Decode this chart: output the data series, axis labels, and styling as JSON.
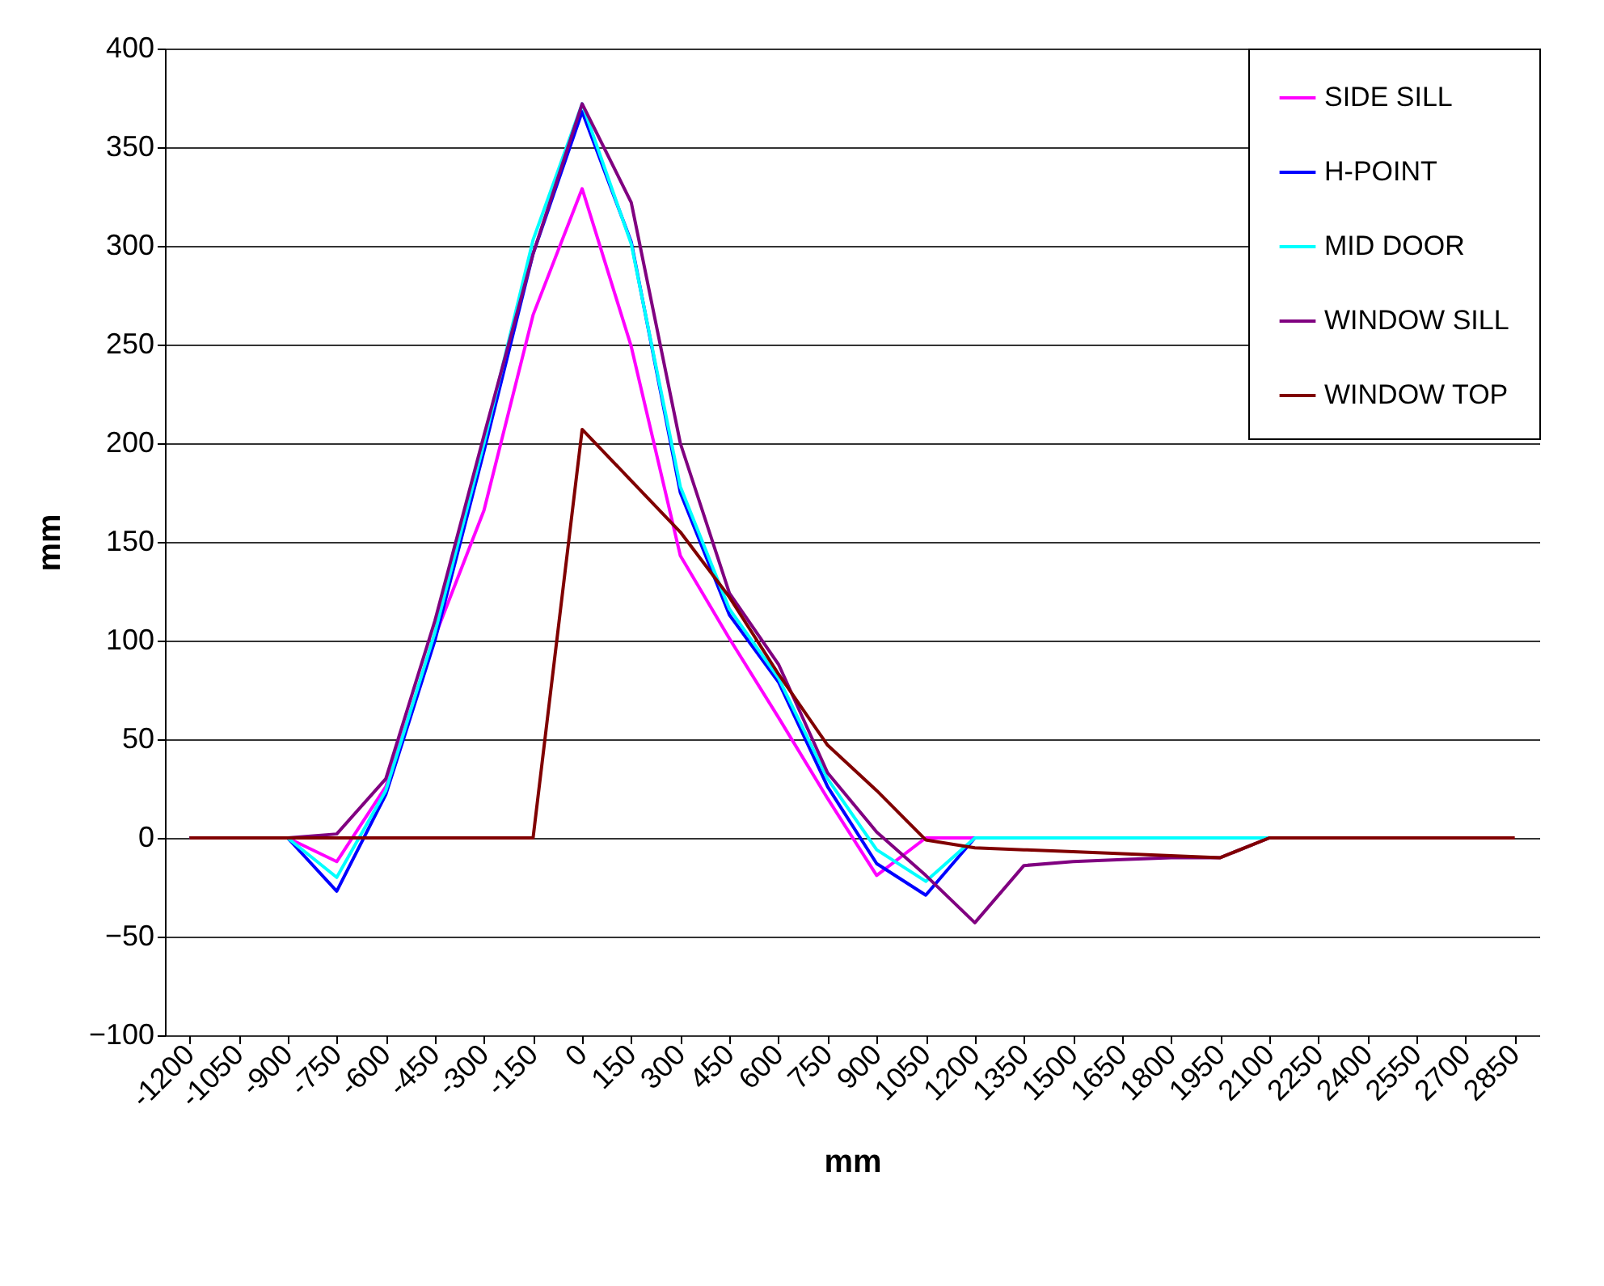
{
  "chart_data": {
    "type": "line",
    "xlabel": "mm",
    "ylabel": "mm",
    "categories": [
      "-1200",
      "-1050",
      "-900",
      "-750",
      "-600",
      "-450",
      "-300",
      "-150",
      "0",
      "150",
      "300",
      "450",
      "600",
      "750",
      "900",
      "1050",
      "1200",
      "1350",
      "1500",
      "1650",
      "1800",
      "1950",
      "2100",
      "2250",
      "2400",
      "2550",
      "2700",
      "2850"
    ],
    "series": [
      {
        "name": "SIDE SILL",
        "color": "#ff00ff",
        "values": [
          0,
          0,
          0,
          -12,
          26,
          102,
          166,
          265,
          329,
          249,
          143,
          101,
          61,
          20,
          -19,
          0,
          0,
          0,
          null,
          null,
          null,
          null,
          null,
          null,
          null,
          null,
          null,
          null
        ]
      },
      {
        "name": "H-POINT",
        "color": "#0000ff",
        "values": [
          0,
          0,
          0,
          -27,
          22,
          100,
          196,
          296,
          368,
          302,
          175,
          113,
          79,
          26,
          -13,
          -29,
          0,
          0,
          null,
          null,
          null,
          null,
          null,
          null,
          null,
          null,
          null,
          null
        ]
      },
      {
        "name": "MID DOOR",
        "color": "#00ffff",
        "values": [
          0,
          0,
          0,
          -20,
          24,
          104,
          200,
          303,
          372,
          301,
          178,
          116,
          81,
          30,
          -6,
          -22,
          0,
          0,
          0,
          0,
          0,
          0,
          0,
          0,
          null,
          null,
          null,
          null
        ]
      },
      {
        "name": "WINDOW SILL",
        "color": "#800080",
        "values": [
          0,
          0,
          0,
          2,
          30,
          110,
          204,
          296,
          372,
          322,
          200,
          124,
          88,
          33,
          3,
          -19,
          -43,
          -14,
          -12,
          -11,
          -10,
          -10,
          0,
          0,
          null,
          null,
          null,
          null
        ]
      },
      {
        "name": "WINDOW TOP",
        "color": "#800000",
        "values": [
          0,
          0,
          0,
          0,
          0,
          0,
          0,
          0,
          207,
          181,
          155,
          122,
          83,
          47,
          24,
          -1,
          -5,
          -6,
          -7,
          -8,
          -9,
          -10,
          0,
          0,
          0,
          0,
          0,
          0
        ]
      }
    ],
    "ylim": [
      -100,
      400
    ],
    "yticks": [
      -100,
      -50,
      0,
      50,
      100,
      150,
      200,
      250,
      300,
      350,
      400
    ],
    "grid": "y",
    "legend": "top right",
    "marker": "none",
    "line_style": "solid"
  }
}
